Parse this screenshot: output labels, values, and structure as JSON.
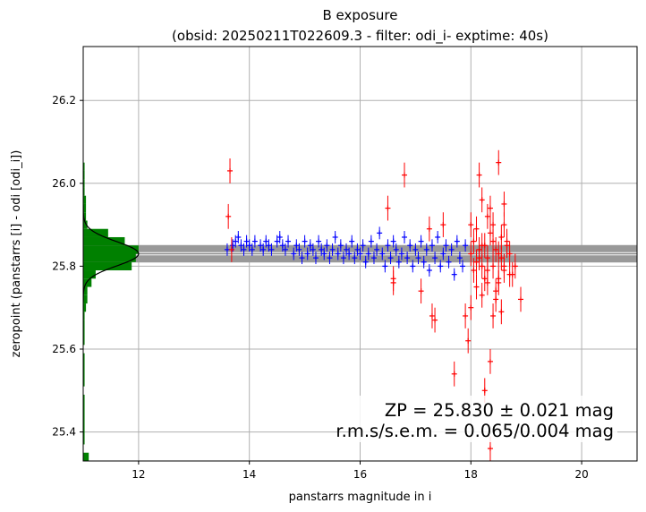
{
  "chart_data": {
    "type": "scatter",
    "title": "B exposure",
    "subtitle": "(obsid: 20250211T022609.3 - filter: odi_i- exptime: 40s)",
    "xlabel": "panstarrs magnitude in i",
    "ylabel": "zeropoint (panstarrs [i] - odi [odi_i])",
    "xlim": [
      11.0,
      21.0
    ],
    "ylim": [
      25.33,
      26.33
    ],
    "xticks": [
      "12",
      "14",
      "16",
      "18",
      "20"
    ],
    "yticks": [
      "25.4",
      "25.6",
      "25.8",
      "26.0",
      "26.2"
    ],
    "grid": true,
    "zeropoint": 25.83,
    "zeropoint_error": 0.021,
    "sem": 0.004,
    "rms": 0.065,
    "annotation_line1": "ZP = 25.830 ± 0.021 mag",
    "annotation_line2": "r.m.s/s.e.m. = 0.065/0.004 mag",
    "colors": {
      "used": "#0000ff",
      "rejected": "#ff0000",
      "histogram": "#008000",
      "band": "#999999",
      "gaussian": "#000000",
      "grid": "#b0b0b0"
    },
    "series": [
      {
        "values": [
          [
            13.6,
            25.84
          ],
          [
            13.7,
            25.85
          ],
          [
            13.75,
            25.86
          ],
          [
            13.8,
            25.87
          ],
          [
            13.85,
            25.85
          ],
          [
            13.9,
            25.84
          ],
          [
            13.95,
            25.86
          ],
          [
            14.0,
            25.85
          ],
          [
            14.05,
            25.84
          ],
          [
            14.1,
            25.86
          ],
          [
            14.2,
            25.85
          ],
          [
            14.25,
            25.84
          ],
          [
            14.3,
            25.86
          ],
          [
            14.35,
            25.85
          ],
          [
            14.4,
            25.84
          ],
          [
            14.5,
            25.86
          ],
          [
            14.55,
            25.87
          ],
          [
            14.6,
            25.85
          ],
          [
            14.65,
            25.84
          ],
          [
            14.7,
            25.86
          ],
          [
            14.8,
            25.83
          ],
          [
            14.85,
            25.85
          ],
          [
            14.9,
            25.84
          ],
          [
            14.95,
            25.82
          ],
          [
            15.0,
            25.86
          ],
          [
            15.05,
            25.83
          ],
          [
            15.1,
            25.85
          ],
          [
            15.15,
            25.84
          ],
          [
            15.2,
            25.82
          ],
          [
            15.25,
            25.86
          ],
          [
            15.3,
            25.84
          ],
          [
            15.35,
            25.83
          ],
          [
            15.4,
            25.85
          ],
          [
            15.45,
            25.82
          ],
          [
            15.5,
            25.84
          ],
          [
            15.55,
            25.87
          ],
          [
            15.6,
            25.83
          ],
          [
            15.65,
            25.85
          ],
          [
            15.7,
            25.82
          ],
          [
            15.75,
            25.84
          ],
          [
            15.8,
            25.83
          ],
          [
            15.85,
            25.86
          ],
          [
            15.9,
            25.82
          ],
          [
            15.95,
            25.84
          ],
          [
            16.0,
            25.83
          ],
          [
            16.05,
            25.85
          ],
          [
            16.1,
            25.81
          ],
          [
            16.15,
            25.83
          ],
          [
            16.2,
            25.86
          ],
          [
            16.25,
            25.82
          ],
          [
            16.3,
            25.84
          ],
          [
            16.35,
            25.88
          ],
          [
            16.4,
            25.83
          ],
          [
            16.45,
            25.8
          ],
          [
            16.5,
            25.85
          ],
          [
            16.55,
            25.82
          ],
          [
            16.6,
            25.86
          ],
          [
            16.65,
            25.84
          ],
          [
            16.7,
            25.81
          ],
          [
            16.75,
            25.83
          ],
          [
            16.8,
            25.87
          ],
          [
            16.85,
            25.82
          ],
          [
            16.9,
            25.85
          ],
          [
            16.95,
            25.8
          ],
          [
            17.0,
            25.84
          ],
          [
            17.05,
            25.82
          ],
          [
            17.1,
            25.86
          ],
          [
            17.15,
            25.81
          ],
          [
            17.2,
            25.84
          ],
          [
            17.25,
            25.79
          ],
          [
            17.3,
            25.85
          ],
          [
            17.35,
            25.82
          ],
          [
            17.4,
            25.87
          ],
          [
            17.45,
            25.8
          ],
          [
            17.5,
            25.83
          ],
          [
            17.55,
            25.85
          ],
          [
            17.6,
            25.81
          ],
          [
            17.65,
            25.84
          ],
          [
            17.7,
            25.78
          ],
          [
            17.75,
            25.86
          ],
          [
            17.8,
            25.82
          ],
          [
            17.85,
            25.8
          ],
          [
            17.9,
            25.85
          ]
        ],
        "error": 0.015,
        "color": "#0000ff"
      },
      {
        "values": [
          [
            13.65,
            26.03
          ],
          [
            13.62,
            25.92
          ],
          [
            13.68,
            25.84
          ],
          [
            16.5,
            25.94
          ],
          [
            16.8,
            26.02
          ],
          [
            17.25,
            25.89
          ],
          [
            17.5,
            25.9
          ],
          [
            16.6,
            25.77
          ],
          [
            16.6,
            25.76
          ],
          [
            17.1,
            25.74
          ],
          [
            17.3,
            25.68
          ],
          [
            17.35,
            25.67
          ],
          [
            17.7,
            25.54
          ],
          [
            17.95,
            25.62
          ],
          [
            17.9,
            25.68
          ],
          [
            18.0,
            25.7
          ],
          [
            18.1,
            25.75
          ],
          [
            18.15,
            26.02
          ],
          [
            18.2,
            25.96
          ],
          [
            18.25,
            25.5
          ],
          [
            18.3,
            25.79
          ],
          [
            18.35,
            25.94
          ],
          [
            18.4,
            25.68
          ],
          [
            18.45,
            25.72
          ],
          [
            18.5,
            26.05
          ],
          [
            18.55,
            25.87
          ],
          [
            18.6,
            25.9
          ],
          [
            18.65,
            25.85
          ],
          [
            18.7,
            25.78
          ],
          [
            18.75,
            25.78
          ],
          [
            18.9,
            25.72
          ],
          [
            18.0,
            25.83
          ],
          [
            18.05,
            25.86
          ],
          [
            18.1,
            25.81
          ],
          [
            18.15,
            25.84
          ],
          [
            18.2,
            25.8
          ],
          [
            18.25,
            25.85
          ],
          [
            18.3,
            25.82
          ],
          [
            18.35,
            25.88
          ],
          [
            18.4,
            25.8
          ],
          [
            18.45,
            25.84
          ],
          [
            18.5,
            25.77
          ],
          [
            18.55,
            25.82
          ],
          [
            18.6,
            25.79
          ],
          [
            18.65,
            25.86
          ],
          [
            18.0,
            25.9
          ],
          [
            18.1,
            25.89
          ],
          [
            18.2,
            25.85
          ],
          [
            18.3,
            25.76
          ],
          [
            18.35,
            25.36
          ],
          [
            18.35,
            25.57
          ],
          [
            18.4,
            25.86
          ],
          [
            18.5,
            25.83
          ],
          [
            18.6,
            25.8
          ],
          [
            18.45,
            25.74
          ],
          [
            18.55,
            25.69
          ],
          [
            18.2,
            25.73
          ],
          [
            18.25,
            25.77
          ],
          [
            18.05,
            25.79
          ],
          [
            18.15,
            25.82
          ],
          [
            18.4,
            25.9
          ],
          [
            18.6,
            25.95
          ],
          [
            18.7,
            25.83
          ],
          [
            18.3,
            25.92
          ],
          [
            18.5,
            25.76
          ],
          [
            18.8,
            25.8
          ]
        ],
        "error": 0.03,
        "color": "#ff0000"
      }
    ],
    "histogram": {
      "bin_edges": [
        25.33,
        25.35,
        25.37,
        25.49,
        25.51,
        25.59,
        25.61,
        25.67,
        25.69,
        25.71,
        25.73,
        25.75,
        25.77,
        25.79,
        25.81,
        25.83,
        25.85,
        25.87,
        25.89,
        25.91,
        25.93,
        25.95,
        25.97,
        25.99,
        26.01,
        26.03,
        26.05
      ],
      "counts": [
        4,
        0,
        1,
        0,
        1,
        0,
        1,
        1,
        2,
        3,
        3,
        6,
        9,
        35,
        38,
        40,
        30,
        18,
        3,
        2,
        2,
        2,
        1,
        1,
        1,
        1
      ]
    }
  }
}
